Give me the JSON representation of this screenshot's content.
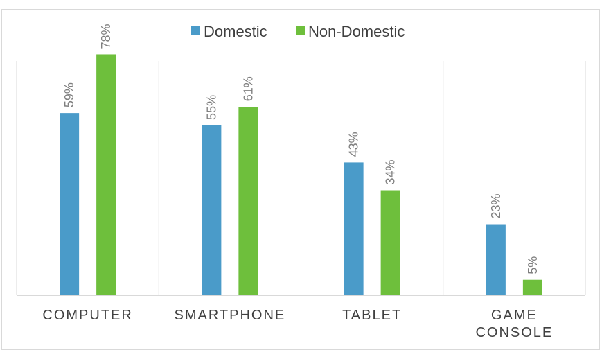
{
  "chart_data": {
    "type": "bar",
    "categories": [
      [
        "COMPUTER"
      ],
      [
        "SMARTPHONE"
      ],
      [
        "TABLET"
      ],
      [
        "GAME",
        "CONSOLE"
      ]
    ],
    "series": [
      {
        "name": "Domestic",
        "color": "#4a9bc9",
        "values": [
          59,
          55,
          43,
          23
        ],
        "labels": [
          "59%",
          "55%",
          "43%",
          "23%"
        ]
      },
      {
        "name": "Non-Domestic",
        "color": "#6ebf3c",
        "values": [
          78,
          61,
          34,
          5
        ],
        "labels": [
          "78%",
          "61%",
          "34%",
          "5%"
        ]
      }
    ],
    "ylim": [
      0,
      90
    ],
    "legend": "top-center",
    "grid": "vertical category separators"
  }
}
